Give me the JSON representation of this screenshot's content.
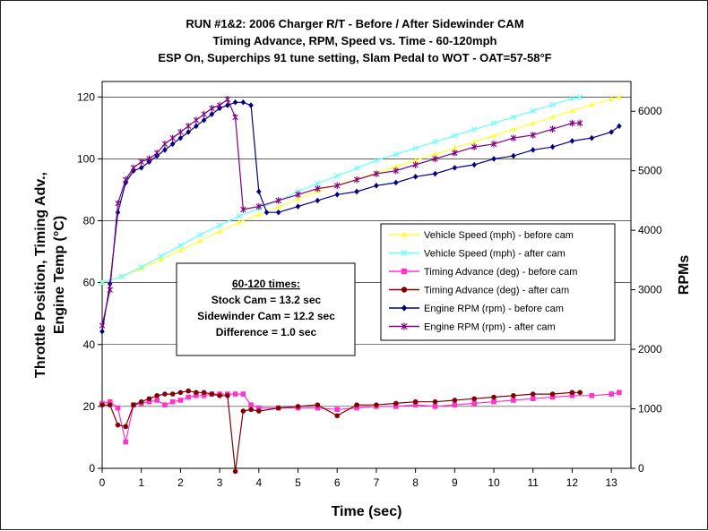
{
  "chart_data": {
    "type": "line",
    "title_lines": [
      "RUN #1&2: 2006 Charger R/T - Before / After Sidewinder CAM",
      "Timing Advance, RPM, Speed vs. Time - 60-120mph",
      "ESP On, Superchips 91 tune setting, Slam Pedal to WOT - OAT=57-58°F"
    ],
    "xlabel": "Time (sec)",
    "ylabel_left_lines": [
      "Throttle Position, Timing Adv.,",
      "Engine Temp (°C)"
    ],
    "ylabel_right": "RPMs",
    "xlim": [
      0,
      13.5
    ],
    "ylim_left": [
      0,
      125
    ],
    "ylim_right": [
      0,
      6500
    ],
    "x_ticks": [
      0,
      1,
      2,
      3,
      4,
      5,
      6,
      7,
      8,
      9,
      10,
      11,
      12,
      13
    ],
    "y_ticks_left": [
      0,
      20,
      40,
      60,
      80,
      100,
      120
    ],
    "y_ticks_right": [
      0,
      1000,
      2000,
      3000,
      4000,
      5000,
      6000
    ],
    "grid": "horizontal",
    "legend_position": "right",
    "annotation": {
      "lines": [
        "60-120 times:",
        "Stock Cam = 13.2 sec",
        "Sidewinder Cam = 12.2 sec",
        "Difference = 1.0 sec"
      ]
    },
    "series": [
      {
        "name": "Vehicle Speed (mph) - before cam",
        "axis": "left",
        "color": "#ffff33",
        "marker": "triangle",
        "x": [
          0,
          0.5,
          1,
          1.5,
          2,
          2.5,
          3,
          3.5,
          4,
          4.5,
          5,
          5.5,
          6,
          6.5,
          7,
          7.5,
          8,
          8.5,
          9,
          9.5,
          10,
          10.5,
          11,
          11.5,
          12,
          12.5,
          13,
          13.2
        ],
        "y": [
          60,
          62,
          64.5,
          67.5,
          70.5,
          73.5,
          76.5,
          79.5,
          82,
          84.5,
          87,
          89.5,
          91.5,
          93.5,
          95.5,
          97.5,
          99.5,
          101.5,
          103.5,
          105.5,
          107.5,
          109.5,
          111.5,
          113.5,
          115.5,
          117.5,
          119.3,
          120
        ]
      },
      {
        "name": "Vehicle Speed (mph) - after cam",
        "axis": "left",
        "color": "#66ffff",
        "marker": "x",
        "x": [
          0,
          0.5,
          1,
          1.5,
          2,
          2.5,
          3,
          3.5,
          4,
          4.5,
          5,
          5.5,
          6,
          6.5,
          7,
          7.5,
          8,
          8.5,
          9,
          9.5,
          10,
          10.5,
          11,
          11.5,
          12,
          12.2
        ],
        "y": [
          60,
          62,
          65,
          68.5,
          72,
          75.5,
          78.5,
          81.5,
          84,
          86.5,
          89.5,
          92,
          94.5,
          97,
          99.5,
          101.5,
          103.5,
          105.5,
          107.5,
          109.5,
          111.5,
          113.5,
          115.5,
          117.5,
          119.5,
          120
        ]
      },
      {
        "name": "Timing Advance (deg) - before cam",
        "axis": "left",
        "color": "#ff33cc",
        "marker": "square",
        "x": [
          0,
          0.2,
          0.4,
          0.6,
          0.8,
          1,
          1.2,
          1.4,
          1.6,
          1.8,
          2,
          2.2,
          2.4,
          2.6,
          2.8,
          3,
          3.2,
          3.4,
          3.6,
          3.8,
          4,
          4.5,
          5,
          5.5,
          6,
          6.5,
          7,
          7.5,
          8,
          8.5,
          9,
          9.5,
          10,
          10.5,
          11,
          11.5,
          12,
          12.5,
          13,
          13.2
        ],
        "y": [
          21,
          21.5,
          19.5,
          8.5,
          20.5,
          21,
          21.5,
          22,
          20.5,
          21.5,
          22,
          23,
          23.5,
          23.5,
          24,
          24,
          24,
          24,
          24,
          20.5,
          19.5,
          19.5,
          19.5,
          19.5,
          19,
          19.5,
          20,
          20,
          20.5,
          20,
          20.5,
          21,
          21.5,
          22,
          22.5,
          23,
          23.5,
          23.5,
          24,
          24.5
        ]
      },
      {
        "name": "Timing Advance (deg) - after cam",
        "axis": "left",
        "color": "#800000",
        "marker": "circle",
        "x": [
          0,
          0.2,
          0.4,
          0.6,
          0.8,
          1,
          1.2,
          1.4,
          1.6,
          1.8,
          2,
          2.2,
          2.4,
          2.6,
          2.8,
          3,
          3.2,
          3.4,
          3.6,
          3.8,
          4,
          4.5,
          5,
          5.5,
          6,
          6.5,
          7,
          7.5,
          8,
          8.5,
          9,
          9.5,
          10,
          10.5,
          11,
          11.5,
          12,
          12.2
        ],
        "y": [
          20.5,
          20.5,
          14,
          13.5,
          20.5,
          21.5,
          22.5,
          23.5,
          24,
          24,
          24.5,
          25,
          24.5,
          24.5,
          24,
          23.5,
          23.5,
          -1,
          18.5,
          19,
          18.5,
          19.5,
          20,
          20.5,
          17,
          20.5,
          20.5,
          21,
          21.5,
          21.5,
          22,
          22.5,
          23,
          23.5,
          24,
          24,
          24.5,
          24.5
        ]
      },
      {
        "name": "Engine RPM (rpm) - before cam",
        "axis": "right",
        "color": "#000080",
        "marker": "diamond",
        "x": [
          0,
          0.2,
          0.4,
          0.6,
          0.8,
          1,
          1.2,
          1.4,
          1.6,
          1.8,
          2,
          2.2,
          2.4,
          2.6,
          2.8,
          3,
          3.2,
          3.4,
          3.6,
          3.8,
          4,
          4.2,
          4.5,
          5,
          5.5,
          6,
          6.5,
          7,
          7.5,
          8,
          8.5,
          9,
          9.5,
          10,
          10.5,
          11,
          11.5,
          12,
          12.5,
          13,
          13.2
        ],
        "y": [
          2300,
          3100,
          4300,
          4800,
          5000,
          5050,
          5150,
          5250,
          5350,
          5450,
          5550,
          5650,
          5750,
          5850,
          5950,
          6050,
          6100,
          6150,
          6150,
          6100,
          4650,
          4300,
          4300,
          4400,
          4500,
          4600,
          4650,
          4750,
          4800,
          4900,
          4950,
          5050,
          5100,
          5200,
          5250,
          5350,
          5400,
          5500,
          5550,
          5650,
          5750
        ]
      },
      {
        "name": "Engine RPM (rpm) - after cam",
        "axis": "right",
        "color": "#800080",
        "marker": "star",
        "x": [
          0,
          0.2,
          0.4,
          0.6,
          0.8,
          1,
          1.2,
          1.4,
          1.6,
          1.8,
          2,
          2.2,
          2.4,
          2.6,
          2.8,
          3,
          3.2,
          3.4,
          3.6,
          4,
          4.5,
          5,
          5.5,
          6,
          6.5,
          7,
          7.5,
          8,
          8.5,
          9,
          9.5,
          10,
          10.5,
          11,
          11.5,
          12,
          12.2
        ],
        "y": [
          2400,
          3000,
          4450,
          4850,
          5050,
          5150,
          5200,
          5300,
          5450,
          5550,
          5650,
          5750,
          5850,
          5950,
          6050,
          6100,
          6200,
          5900,
          4350,
          4400,
          4500,
          4600,
          4700,
          4750,
          4850,
          4950,
          5000,
          5100,
          5200,
          5300,
          5400,
          5450,
          5550,
          5600,
          5700,
          5800,
          5800
        ]
      }
    ]
  }
}
